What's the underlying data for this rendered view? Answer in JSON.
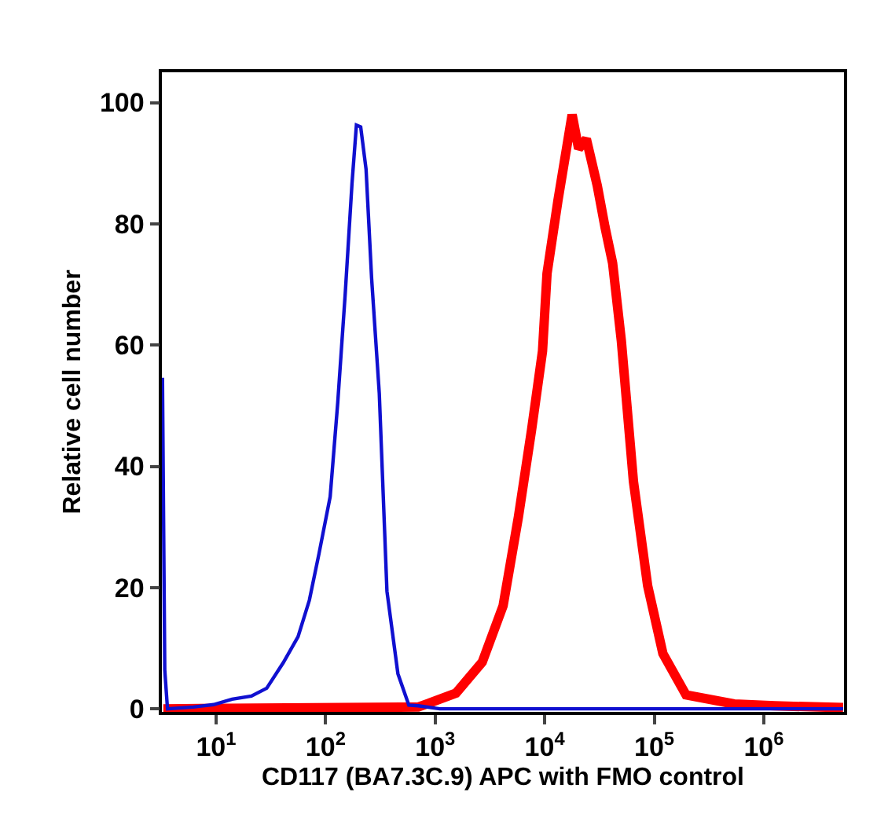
{
  "chart_data": {
    "type": "line",
    "xlabel": "CD117 (BA7.3C.9) APC with FMO control",
    "ylabel": "Relative cell number",
    "log": "x",
    "xlim": [
      3.2,
      5400000
    ],
    "ylim": [
      -0.5,
      105
    ],
    "marker": "none",
    "line_style": "solid",
    "xticks": [
      {
        "value": 10,
        "label": "10$^{1}$"
      },
      {
        "value": 100,
        "label": "10$^{2}$"
      },
      {
        "value": 1000,
        "label": "10$^{3}$"
      },
      {
        "value": 10000,
        "label": "10$^{4}$"
      },
      {
        "value": 100000,
        "label": "10$^{5}$"
      },
      {
        "value": 1000000,
        "label": "10$^{6}$"
      }
    ],
    "yticks": [
      0,
      20,
      40,
      60,
      80,
      100
    ],
    "series": [
      {
        "color": "#ff0000",
        "x": [
          3.3,
          700,
          871,
          1550,
          2690,
          4170,
          5750,
          7590,
          9550,
          10500,
          13200,
          17800,
          20400,
          24000,
          30200,
          35500,
          41700,
          50100,
          64600,
          87100,
          120000,
          195000,
          537000,
          1260000,
          5300000
        ],
        "values": [
          0,
          0.3,
          0.9,
          2.6,
          7.7,
          17,
          31.6,
          46,
          59,
          71.8,
          83.8,
          98,
          92.4,
          94,
          86.3,
          79.5,
          73.5,
          60.7,
          37.5,
          20.3,
          9.1,
          2.3,
          0.8,
          0.5,
          0.2
        ]
      },
      {
        "color": "#1010d0",
        "x": [
          3.24,
          3.4,
          3.6,
          6.2,
          9.5,
          14,
          21,
          29,
          41,
          56,
          71,
          87,
          110,
          129,
          151,
          174,
          191,
          209,
          234,
          263,
          309,
          363,
          457,
          575,
          700,
          1100,
          5300000
        ],
        "values": [
          54.6,
          6.4,
          0,
          0.3,
          0.7,
          1.6,
          2.1,
          3.4,
          7.6,
          11.9,
          17.9,
          25.6,
          35,
          50.5,
          68.5,
          86.6,
          96.3,
          96,
          89,
          71,
          52,
          19.4,
          5.8,
          0.6,
          0.5,
          0,
          0
        ]
      }
    ]
  }
}
